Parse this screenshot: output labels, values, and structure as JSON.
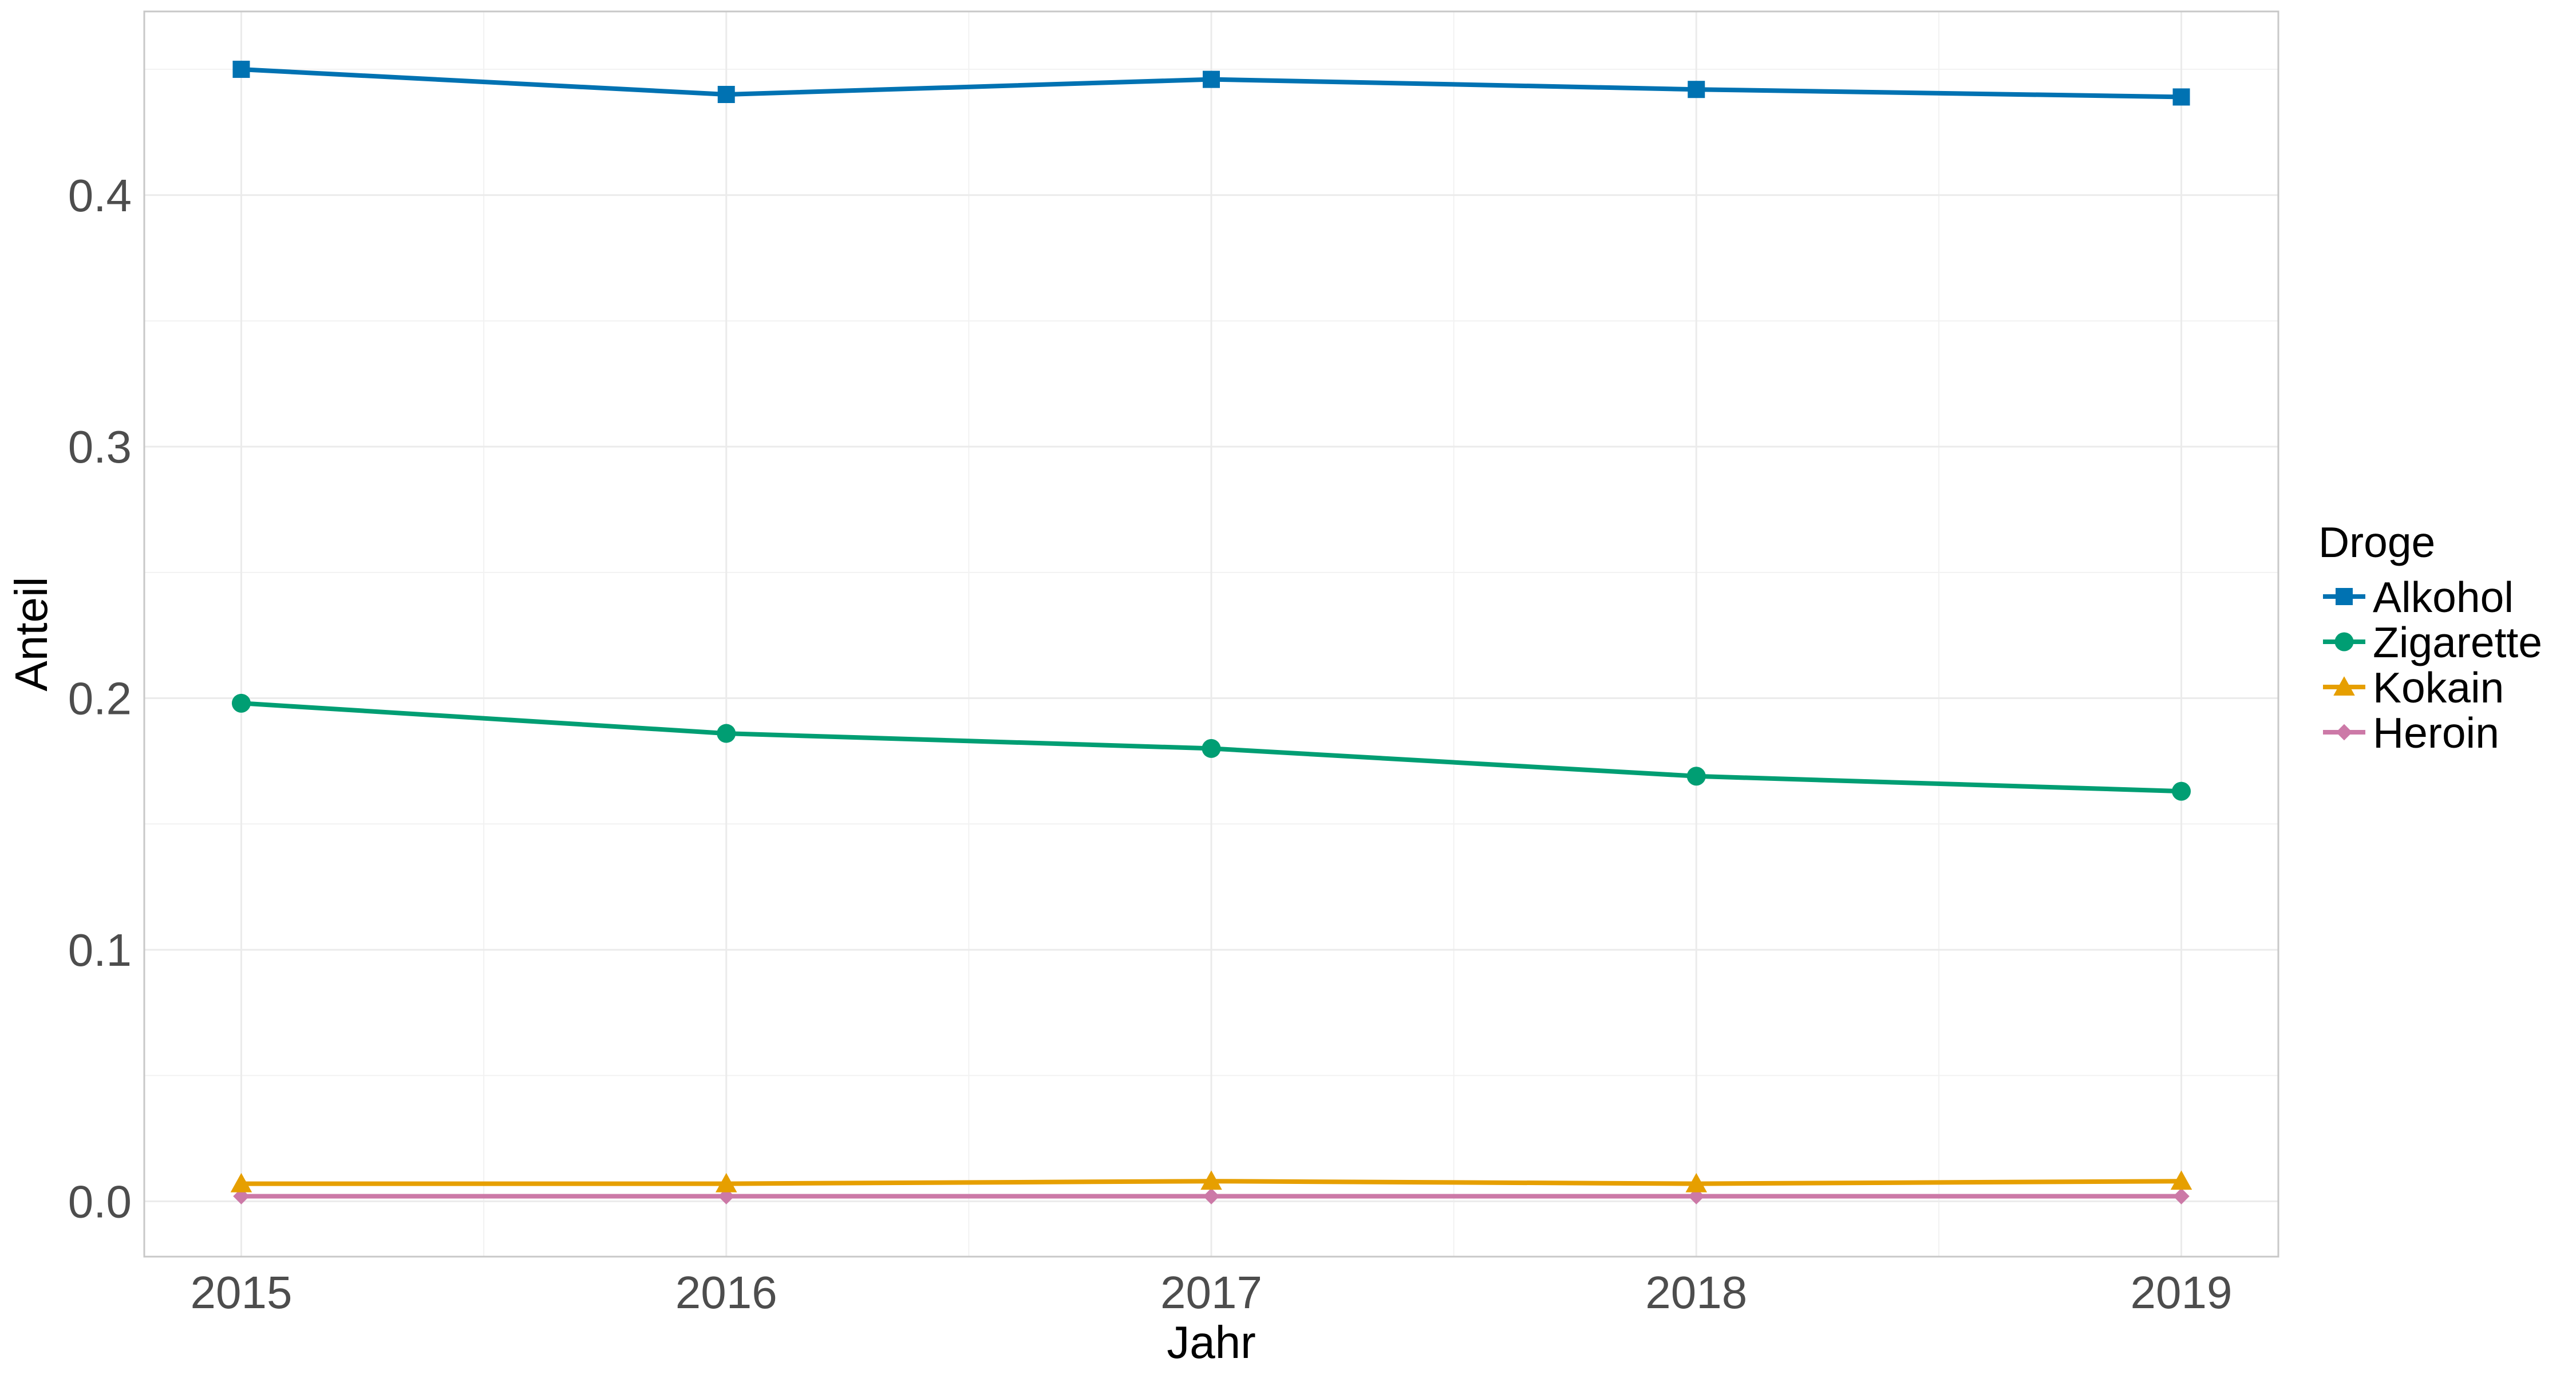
{
  "chart_data": {
    "type": "line",
    "title": "",
    "xlabel": "Jahr",
    "ylabel": "Anteil",
    "x": [
      2015,
      2016,
      2017,
      2018,
      2019
    ],
    "xlim": [
      2014.8,
      2019.2
    ],
    "ylim": [
      -0.022,
      0.473
    ],
    "x_ticks": [
      "2015",
      "2016",
      "2017",
      "2018",
      "2019"
    ],
    "y_ticks": [
      "0.0",
      "0.1",
      "0.2",
      "0.3",
      "0.4"
    ],
    "y_tick_values": [
      0.0,
      0.1,
      0.2,
      0.3,
      0.4
    ],
    "grid": true,
    "legend": {
      "title": "Droge",
      "position": "right"
    },
    "series": [
      {
        "name": "Alkohol",
        "color": "#0072B2",
        "marker": "square",
        "values": [
          0.45,
          0.44,
          0.446,
          0.442,
          0.439
        ]
      },
      {
        "name": "Zigarette",
        "color": "#009E73",
        "marker": "circle",
        "values": [
          0.198,
          0.186,
          0.18,
          0.169,
          0.163
        ]
      },
      {
        "name": "Kokain",
        "color": "#E69F00",
        "marker": "triangle",
        "values": [
          0.007,
          0.007,
          0.008,
          0.007,
          0.008
        ]
      },
      {
        "name": "Heroin",
        "color": "#CC79A7",
        "marker": "diamond",
        "values": [
          0.002,
          0.002,
          0.002,
          0.002,
          0.002
        ]
      }
    ]
  }
}
